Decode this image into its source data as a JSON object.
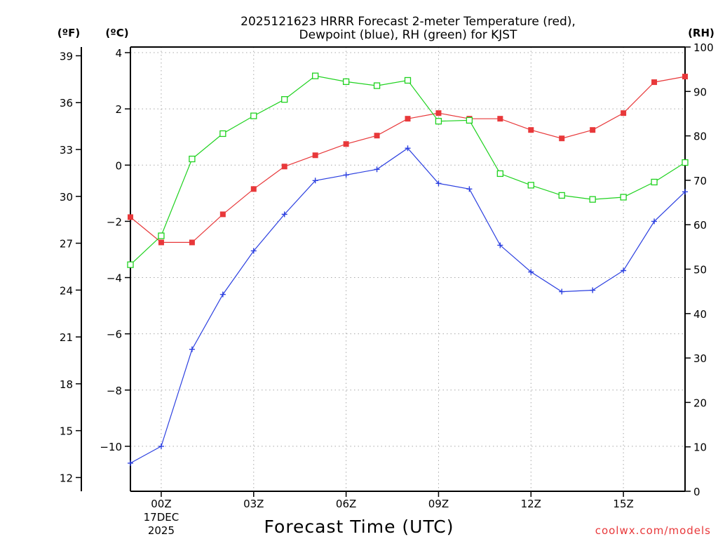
{
  "chart_data": {
    "type": "line",
    "title_line1": "2025121623 HRRR Forecast 2-meter Temperature (red),",
    "title_line2": "Dewpoint (blue), RH (green) for KJST",
    "xlabel": "Forecast Time (UTC)",
    "credit": "coolwx.com/models",
    "units": {
      "fahrenheit": "(ºF)",
      "celsius": "(ºC)",
      "rh": "(RH)"
    },
    "x_hours": [
      -1,
      0,
      1,
      2,
      3,
      4,
      5,
      6,
      7,
      8,
      9,
      10,
      11,
      12,
      13,
      14,
      15,
      16,
      17
    ],
    "x_ticks": [
      {
        "hour": 0,
        "label": "00Z",
        "sub1": "17DEC",
        "sub2": "2025"
      },
      {
        "hour": 3,
        "label": "03Z",
        "sub1": "",
        "sub2": ""
      },
      {
        "hour": 6,
        "label": "06Z",
        "sub1": "",
        "sub2": ""
      },
      {
        "hour": 9,
        "label": "09Z",
        "sub1": "",
        "sub2": ""
      },
      {
        "hour": 12,
        "label": "12Z",
        "sub1": "",
        "sub2": ""
      },
      {
        "hour": 15,
        "label": "15Z",
        "sub1": "",
        "sub2": ""
      }
    ],
    "x_range": [
      -1,
      17
    ],
    "celsius_range": [
      -11.6,
      4.2
    ],
    "celsius_ticks": [
      "4",
      "2",
      "0",
      "−2",
      "−4",
      "−6",
      "−8",
      "−10"
    ],
    "celsius_tick_values": [
      4,
      2,
      0,
      -2,
      -4,
      -6,
      -8,
      -10
    ],
    "fahrenheit_ticks": [
      "39",
      "36",
      "33",
      "30",
      "27",
      "24",
      "21",
      "18",
      "15",
      "12"
    ],
    "fahrenheit_tick_values": [
      39,
      36,
      33,
      30,
      27,
      24,
      21,
      18,
      15,
      12
    ],
    "rh_range": [
      0,
      100
    ],
    "rh_ticks": [
      "100",
      "90",
      "80",
      "70",
      "60",
      "50",
      "40",
      "30",
      "20",
      "10",
      "0"
    ],
    "rh_tick_values": [
      100,
      90,
      80,
      70,
      60,
      50,
      40,
      30,
      20,
      10,
      0
    ],
    "series": [
      {
        "name": "Temperature",
        "axis": "celsius",
        "color": "#e8383a",
        "marker": "filled-square",
        "values": [
          -1.85,
          -2.75,
          -2.75,
          -1.75,
          -0.85,
          -0.05,
          0.35,
          0.75,
          1.05,
          1.65,
          1.85,
          1.65,
          1.65,
          1.25,
          0.95,
          1.25,
          1.85,
          2.95,
          3.15
        ]
      },
      {
        "name": "Dewpoint",
        "axis": "celsius",
        "color": "#2b3fe0",
        "marker": "plus",
        "values": [
          -10.6,
          -10.0,
          -6.55,
          -4.6,
          -3.05,
          -1.75,
          -0.55,
          -0.35,
          -0.15,
          0.6,
          -0.65,
          -0.85,
          -2.85,
          -3.8,
          -4.5,
          -4.45,
          -3.75,
          -2.0,
          -0.95
        ]
      },
      {
        "name": "RH",
        "axis": "rh",
        "color": "#1fd21f",
        "marker": "open-square",
        "values": [
          51,
          57.5,
          74.8,
          80.5,
          84.5,
          88.2,
          93.5,
          92.2,
          91.3,
          92.5,
          83.3,
          83.5,
          71.5,
          68.9,
          66.6,
          65.7,
          66.2,
          69.6,
          74
        ]
      }
    ]
  }
}
